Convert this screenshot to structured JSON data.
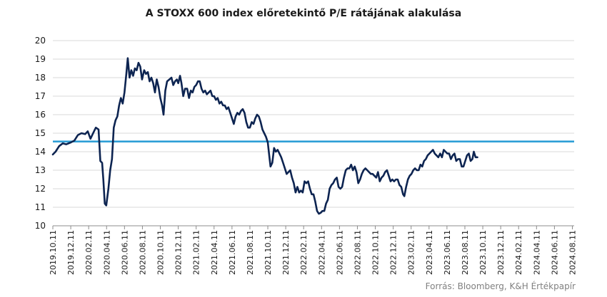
{
  "chart_data": {
    "type": "line",
    "title": "A STOXX 600 index előretekintő P/E rátájának alakulása",
    "source": "Forrás: Bloomberg,  K&H Értékpapír",
    "ylim": [
      10,
      20
    ],
    "yticks": [
      "10",
      "11",
      "12",
      "13",
      "14",
      "15",
      "16",
      "17",
      "18",
      "19",
      "20"
    ],
    "x_tick_labels": [
      "2019.10.11",
      "2019.12.11",
      "2020.02.11",
      "2020.04.11",
      "2020.06.11",
      "2020.08.11",
      "2020.10.11",
      "2020.12.11",
      "2021.02.11",
      "2021.04.11",
      "2021.06.11",
      "2021.08.11",
      "2021.10.11",
      "2021.12.11",
      "2022.02.11",
      "2022.04.11",
      "2022.06.11",
      "2022.08.11",
      "2022.10.11",
      "2022.12.11",
      "2023.02.11",
      "2023.04.11",
      "2023.06.11",
      "2023.08.11",
      "2023.10.11",
      "2023.12.11",
      "2024.02.11",
      "2024.04.11",
      "2024.06.11",
      "2024.08.11"
    ],
    "grid": true,
    "colors": {
      "series": "#0d2451",
      "reference": "#2e9fd6",
      "grid": "#d9d9d9"
    },
    "reference_line": {
      "value": 14.55
    },
    "series": [
      {
        "values": [
          [
            0,
            13.85
          ],
          [
            0.15,
            14.0
          ],
          [
            0.35,
            14.3
          ],
          [
            0.55,
            14.45
          ],
          [
            0.75,
            14.4
          ],
          [
            1.0,
            14.5
          ],
          [
            1.2,
            14.6
          ],
          [
            1.4,
            14.9
          ],
          [
            1.6,
            15.0
          ],
          [
            1.8,
            14.95
          ],
          [
            1.95,
            15.1
          ],
          [
            2.1,
            14.7
          ],
          [
            2.25,
            15.0
          ],
          [
            2.4,
            15.3
          ],
          [
            2.55,
            15.2
          ],
          [
            2.65,
            13.5
          ],
          [
            2.75,
            13.4
          ],
          [
            2.82,
            12.5
          ],
          [
            2.9,
            11.2
          ],
          [
            2.98,
            11.1
          ],
          [
            3.1,
            12.0
          ],
          [
            3.2,
            13.0
          ],
          [
            3.3,
            13.6
          ],
          [
            3.4,
            15.3
          ],
          [
            3.5,
            15.7
          ],
          [
            3.6,
            15.9
          ],
          [
            3.7,
            16.5
          ],
          [
            3.8,
            16.9
          ],
          [
            3.9,
            16.6
          ],
          [
            4.0,
            17.2
          ],
          [
            4.1,
            18.2
          ],
          [
            4.18,
            19.05
          ],
          [
            4.28,
            18.0
          ],
          [
            4.38,
            18.4
          ],
          [
            4.48,
            18.1
          ],
          [
            4.58,
            18.5
          ],
          [
            4.68,
            18.4
          ],
          [
            4.78,
            18.8
          ],
          [
            4.88,
            18.6
          ],
          [
            4.98,
            17.9
          ],
          [
            5.1,
            18.4
          ],
          [
            5.2,
            18.2
          ],
          [
            5.3,
            18.3
          ],
          [
            5.4,
            17.8
          ],
          [
            5.5,
            18.0
          ],
          [
            5.6,
            17.7
          ],
          [
            5.7,
            17.2
          ],
          [
            5.8,
            17.9
          ],
          [
            5.9,
            17.5
          ],
          [
            6.0,
            16.9
          ],
          [
            6.1,
            16.5
          ],
          [
            6.18,
            16.0
          ],
          [
            6.28,
            17.3
          ],
          [
            6.38,
            17.8
          ],
          [
            6.5,
            17.9
          ],
          [
            6.62,
            18.0
          ],
          [
            6.72,
            17.6
          ],
          [
            6.82,
            17.8
          ],
          [
            6.92,
            17.9
          ],
          [
            7.0,
            17.7
          ],
          [
            7.1,
            18.1
          ],
          [
            7.18,
            17.7
          ],
          [
            7.28,
            17.0
          ],
          [
            7.38,
            17.4
          ],
          [
            7.5,
            17.4
          ],
          [
            7.6,
            16.9
          ],
          [
            7.7,
            17.3
          ],
          [
            7.8,
            17.2
          ],
          [
            7.9,
            17.5
          ],
          [
            8.0,
            17.6
          ],
          [
            8.1,
            17.8
          ],
          [
            8.2,
            17.8
          ],
          [
            8.3,
            17.4
          ],
          [
            8.4,
            17.2
          ],
          [
            8.5,
            17.3
          ],
          [
            8.6,
            17.1
          ],
          [
            8.7,
            17.2
          ],
          [
            8.8,
            17.3
          ],
          [
            8.9,
            17.0
          ],
          [
            9.0,
            17.0
          ],
          [
            9.1,
            16.8
          ],
          [
            9.2,
            16.9
          ],
          [
            9.3,
            16.6
          ],
          [
            9.4,
            16.7
          ],
          [
            9.5,
            16.5
          ],
          [
            9.6,
            16.5
          ],
          [
            9.7,
            16.3
          ],
          [
            9.8,
            16.4
          ],
          [
            9.9,
            16.1
          ],
          [
            10.0,
            15.8
          ],
          [
            10.1,
            15.5
          ],
          [
            10.2,
            15.9
          ],
          [
            10.3,
            16.1
          ],
          [
            10.4,
            16.0
          ],
          [
            10.5,
            16.2
          ],
          [
            10.6,
            16.3
          ],
          [
            10.7,
            16.1
          ],
          [
            10.8,
            15.6
          ],
          [
            10.9,
            15.3
          ],
          [
            11.0,
            15.3
          ],
          [
            11.1,
            15.6
          ],
          [
            11.2,
            15.5
          ],
          [
            11.3,
            15.8
          ],
          [
            11.4,
            16.0
          ],
          [
            11.5,
            15.9
          ],
          [
            11.6,
            15.6
          ],
          [
            11.7,
            15.2
          ],
          [
            11.8,
            15.0
          ],
          [
            11.9,
            14.8
          ],
          [
            12.0,
            14.5
          ],
          [
            12.08,
            13.8
          ],
          [
            12.15,
            13.2
          ],
          [
            12.25,
            13.4
          ],
          [
            12.35,
            14.2
          ],
          [
            12.45,
            14.0
          ],
          [
            12.55,
            14.1
          ],
          [
            12.65,
            13.9
          ],
          [
            12.75,
            13.7
          ],
          [
            12.85,
            13.4
          ],
          [
            12.95,
            13.1
          ],
          [
            13.05,
            12.8
          ],
          [
            13.15,
            12.9
          ],
          [
            13.25,
            13.0
          ],
          [
            13.35,
            12.6
          ],
          [
            13.45,
            12.3
          ],
          [
            13.55,
            11.8
          ],
          [
            13.65,
            12.1
          ],
          [
            13.75,
            11.8
          ],
          [
            13.85,
            11.9
          ],
          [
            13.95,
            11.8
          ],
          [
            14.05,
            12.4
          ],
          [
            14.15,
            12.3
          ],
          [
            14.25,
            12.4
          ],
          [
            14.35,
            12.0
          ],
          [
            14.45,
            11.7
          ],
          [
            14.55,
            11.7
          ],
          [
            14.65,
            11.3
          ],
          [
            14.75,
            10.8
          ],
          [
            14.85,
            10.65
          ],
          [
            14.95,
            10.7
          ],
          [
            15.05,
            10.8
          ],
          [
            15.15,
            10.8
          ],
          [
            15.25,
            11.2
          ],
          [
            15.35,
            11.4
          ],
          [
            15.45,
            12.0
          ],
          [
            15.55,
            12.2
          ],
          [
            15.65,
            12.3
          ],
          [
            15.75,
            12.5
          ],
          [
            15.85,
            12.6
          ],
          [
            15.95,
            12.1
          ],
          [
            16.05,
            12.0
          ],
          [
            16.15,
            12.1
          ],
          [
            16.25,
            12.6
          ],
          [
            16.35,
            13.0
          ],
          [
            16.45,
            13.1
          ],
          [
            16.55,
            13.1
          ],
          [
            16.65,
            13.3
          ],
          [
            16.75,
            13.0
          ],
          [
            16.85,
            13.2
          ],
          [
            16.95,
            12.9
          ],
          [
            17.05,
            12.3
          ],
          [
            17.15,
            12.5
          ],
          [
            17.25,
            12.8
          ],
          [
            17.35,
            13.0
          ],
          [
            17.45,
            13.1
          ],
          [
            17.55,
            13.0
          ],
          [
            17.65,
            12.9
          ],
          [
            17.75,
            12.8
          ],
          [
            17.85,
            12.8
          ],
          [
            17.95,
            12.7
          ],
          [
            18.05,
            12.6
          ],
          [
            18.15,
            12.9
          ],
          [
            18.25,
            12.4
          ],
          [
            18.35,
            12.6
          ],
          [
            18.45,
            12.7
          ],
          [
            18.55,
            12.9
          ],
          [
            18.65,
            13.0
          ],
          [
            18.75,
            12.7
          ],
          [
            18.85,
            12.4
          ],
          [
            18.95,
            12.5
          ],
          [
            19.05,
            12.4
          ],
          [
            19.15,
            12.5
          ],
          [
            19.25,
            12.5
          ],
          [
            19.35,
            12.2
          ],
          [
            19.45,
            12.1
          ],
          [
            19.55,
            11.7
          ],
          [
            19.62,
            11.6
          ],
          [
            19.72,
            12.1
          ],
          [
            19.82,
            12.5
          ],
          [
            19.92,
            12.7
          ],
          [
            20.02,
            12.8
          ],
          [
            20.12,
            13.0
          ],
          [
            20.22,
            13.1
          ],
          [
            20.32,
            13.0
          ],
          [
            20.42,
            13.0
          ],
          [
            20.52,
            13.3
          ],
          [
            20.62,
            13.2
          ],
          [
            20.72,
            13.5
          ],
          [
            20.82,
            13.6
          ],
          [
            20.92,
            13.8
          ],
          [
            21.02,
            13.9
          ],
          [
            21.12,
            14.0
          ],
          [
            21.22,
            14.1
          ],
          [
            21.32,
            13.9
          ],
          [
            21.42,
            13.8
          ],
          [
            21.52,
            13.7
          ],
          [
            21.62,
            13.9
          ],
          [
            21.72,
            13.7
          ],
          [
            21.82,
            14.1
          ],
          [
            21.92,
            14.0
          ],
          [
            22.02,
            13.9
          ],
          [
            22.12,
            13.9
          ],
          [
            22.22,
            13.6
          ],
          [
            22.32,
            13.8
          ],
          [
            22.42,
            13.9
          ],
          [
            22.52,
            13.5
          ],
          [
            22.62,
            13.6
          ],
          [
            22.72,
            13.6
          ],
          [
            22.82,
            13.2
          ],
          [
            22.92,
            13.2
          ],
          [
            23.02,
            13.5
          ],
          [
            23.12,
            13.8
          ],
          [
            23.22,
            13.9
          ],
          [
            23.32,
            13.5
          ],
          [
            23.42,
            13.6
          ],
          [
            23.5,
            14.0
          ],
          [
            23.6,
            13.7
          ],
          [
            23.7,
            13.7
          ]
        ]
      }
    ]
  }
}
